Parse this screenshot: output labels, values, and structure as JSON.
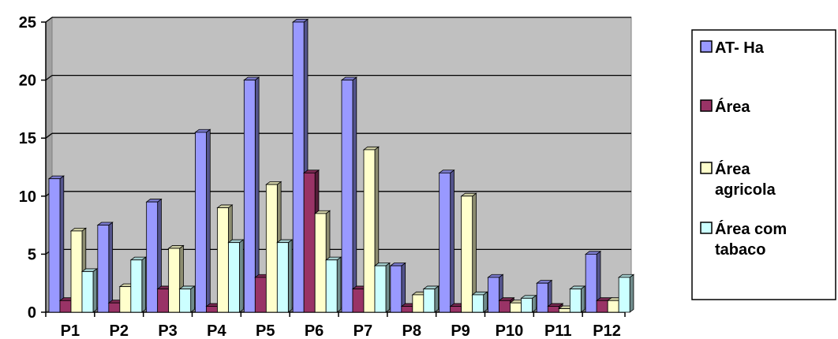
{
  "chart_data": {
    "type": "bar",
    "title": "",
    "xlabel": "",
    "ylabel": "",
    "categories": [
      "P1",
      "P2",
      "P3",
      "P4",
      "P5",
      "P6",
      "P7",
      "P8",
      "P9",
      "P10",
      "P11",
      "P12"
    ],
    "series": [
      {
        "name": "AT- Ha",
        "lines": [
          "AT- Ha"
        ],
        "color": "#9999ff",
        "values": [
          11.5,
          7.5,
          9.5,
          15.5,
          20,
          25,
          20,
          4,
          12,
          3,
          2.5,
          5
        ]
      },
      {
        "name": "Área",
        "lines": [
          "Área"
        ],
        "color": "#993366",
        "values": [
          1,
          0.8,
          2,
          0.5,
          3,
          12,
          2,
          0.5,
          0.5,
          1,
          0.5,
          1
        ]
      },
      {
        "name": "Área agricola",
        "lines": [
          "Área",
          "agricola"
        ],
        "color": "#ffffcc",
        "values": [
          7,
          2.2,
          5.5,
          9,
          11,
          8.5,
          14,
          1.5,
          10,
          0.8,
          0.3,
          1
        ]
      },
      {
        "name": "Área com tabaco",
        "lines": [
          "Área com",
          "tabaco"
        ],
        "color": "#ccffff",
        "values": [
          3.5,
          4.5,
          2,
          6,
          6,
          4.5,
          4,
          2,
          1.5,
          1.2,
          2,
          3
        ]
      }
    ],
    "ylim": [
      0,
      25
    ],
    "yticks": [
      0,
      5,
      10,
      15,
      20,
      25
    ],
    "grid": true,
    "legend_position": "right",
    "plot_background": "#c0c0c0"
  }
}
